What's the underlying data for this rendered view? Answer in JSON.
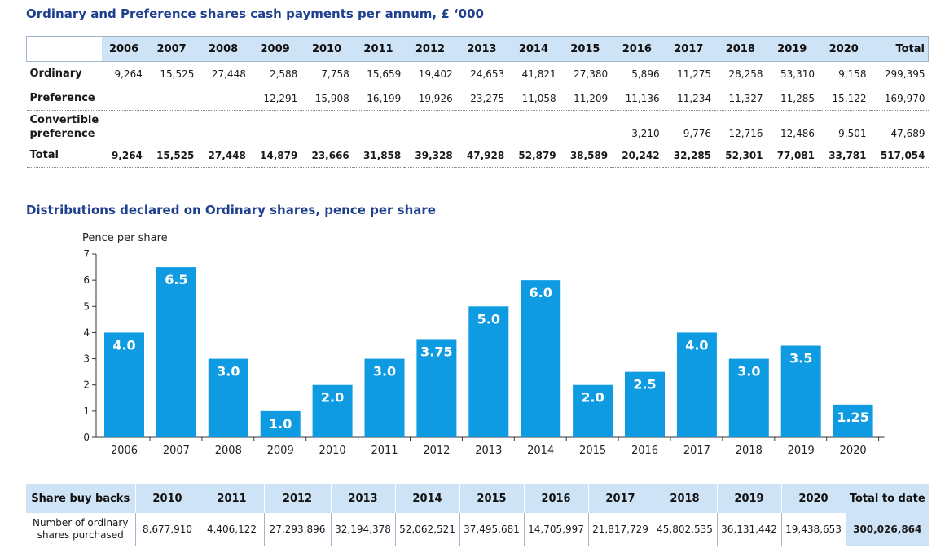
{
  "table1": {
    "title": "Ordinary and Preference shares cash payments per annum, £ ‘000",
    "headers": [
      "2006",
      "2007",
      "2008",
      "2009",
      "2010",
      "2011",
      "2012",
      "2013",
      "2014",
      "2015",
      "2016",
      "2017",
      "2018",
      "2019",
      "2020",
      "Total"
    ],
    "rows": [
      {
        "label": "Ordinary",
        "tall": false,
        "total": false,
        "cells": [
          "9,264",
          "15,525",
          "27,448",
          "2,588",
          "7,758",
          "15,659",
          "19,402",
          "24,653",
          "41,821",
          "27,380",
          "5,896",
          "11,275",
          "28,258",
          "53,310",
          "9,158",
          "299,395"
        ]
      },
      {
        "label": "Preference",
        "tall": false,
        "total": false,
        "cells": [
          "",
          "",
          "",
          "12,291",
          "15,908",
          "16,199",
          "19,926",
          "23,275",
          "11,058",
          "11,209",
          "11,136",
          "11,234",
          "11,327",
          "11,285",
          "15,122",
          "169,970"
        ]
      },
      {
        "label": "Convertible preference",
        "tall": true,
        "total": false,
        "cells": [
          "",
          "",
          "",
          "",
          "",
          "",
          "",
          "",
          "",
          "",
          "3,210",
          "9,776",
          "12,716",
          "12,486",
          "9,501",
          "47,689"
        ]
      },
      {
        "label": "Total",
        "tall": false,
        "total": true,
        "cells": [
          "9,264",
          "15,525",
          "27,448",
          "14,879",
          "23,666",
          "31,858",
          "39,328",
          "47,928",
          "52,879",
          "38,589",
          "20,242",
          "32,285",
          "52,301",
          "77,081",
          "33,781",
          "517,054"
        ]
      }
    ]
  },
  "chart_title": "Distributions declared on Ordinary shares, pence per share",
  "chart_data": {
    "type": "bar",
    "title": "Distributions declared on Ordinary shares, pence per share",
    "ylabel": "Pence per share",
    "xlabel": "",
    "ylim": [
      0,
      7
    ],
    "yticks": [
      0,
      1,
      2,
      3,
      4,
      5,
      6,
      7
    ],
    "categories": [
      "2006",
      "2007",
      "2008",
      "2009",
      "2010",
      "2011",
      "2012",
      "2013",
      "2014",
      "2015",
      "2016",
      "2017",
      "2018",
      "2019",
      "2020"
    ],
    "values": [
      4.0,
      6.5,
      3.0,
      1.0,
      2.0,
      3.0,
      3.75,
      5.0,
      6.0,
      2.0,
      2.5,
      4.0,
      3.0,
      3.5,
      1.25
    ],
    "data_labels": [
      "4.0",
      "6.5",
      "3.0",
      "1.0",
      "2.0",
      "3.0",
      "3.75",
      "5.0",
      "6.0",
      "2.0",
      "2.5",
      "4.0",
      "3.0",
      "3.5",
      "1.25"
    ],
    "bar_color": "#0f9be2",
    "grid": false
  },
  "table2": {
    "header_label": "Share buy backs",
    "years": [
      "2010",
      "2011",
      "2012",
      "2013",
      "2014",
      "2015",
      "2016",
      "2017",
      "2018",
      "2019",
      "2020"
    ],
    "total_label": "Total to date",
    "row_label": "Number of ordinary shares purchased",
    "values": [
      "8,677,910",
      "4,406,122",
      "27,293,896",
      "32,194,378",
      "52,062,521",
      "37,495,681",
      "14,705,997",
      "21,817,729",
      "45,802,535",
      "36,131,442",
      "19,438,653"
    ],
    "total_value": "300,026,864"
  },
  "colors": {
    "title": "#1f3f8f",
    "header_bg": "#cfe3f6",
    "bar": "#0f9be2"
  }
}
